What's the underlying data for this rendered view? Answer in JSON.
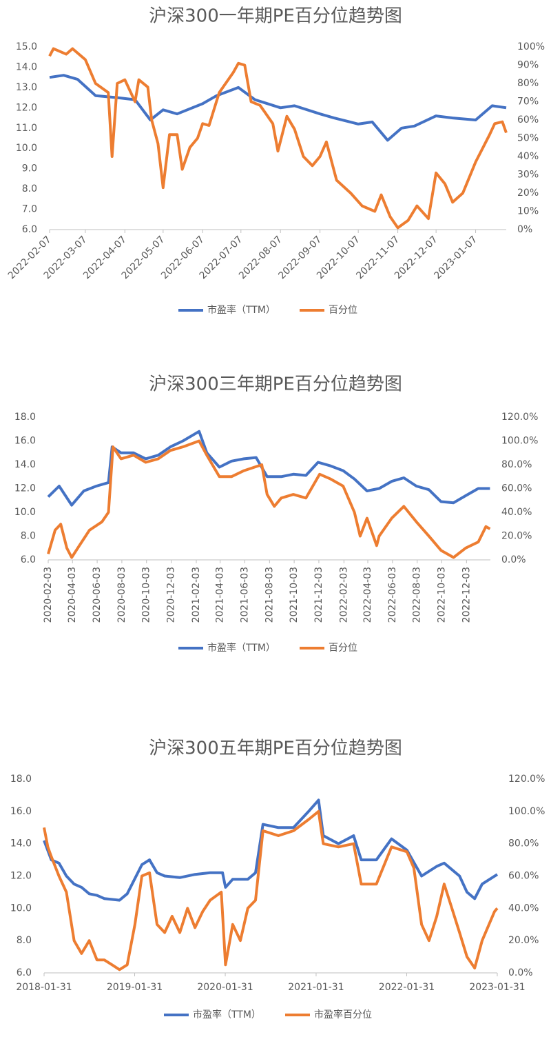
{
  "chart_data": [
    {
      "type": "line",
      "title": "沪深300一年期PE百分位趋势图",
      "legend": "bottom",
      "xlim": [
        "2022-02-07",
        "2023-01-31"
      ],
      "xticks": [
        "2022-02-07",
        "2022-03-07",
        "2022-04-07",
        "2022-05-07",
        "2022-06-07",
        "2022-07-07",
        "2022-08-07",
        "2022-09-07",
        "2022-10-07",
        "2022-11-07",
        "2022-12-07",
        "2023-01-07"
      ],
      "ylim": [
        6,
        15
      ],
      "yticks": [
        {
          "value": 6,
          "label": "6.0"
        },
        {
          "value": 7,
          "label": "7.0"
        },
        {
          "value": 8,
          "label": "8.0"
        },
        {
          "value": 9,
          "label": "9.0"
        },
        {
          "value": 10,
          "label": "10.0"
        },
        {
          "value": 11,
          "label": "11.0"
        },
        {
          "value": 12,
          "label": "12.0"
        },
        {
          "value": 13,
          "label": "13.0"
        },
        {
          "value": 14,
          "label": "14.0"
        },
        {
          "value": 15,
          "label": "15.0"
        }
      ],
      "y2lim": [
        0,
        100
      ],
      "y2ticks": [
        {
          "value": 0,
          "label": "0%"
        },
        {
          "value": 10,
          "label": "10%"
        },
        {
          "value": 20,
          "label": "20%"
        },
        {
          "value": 30,
          "label": "30%"
        },
        {
          "value": 40,
          "label": "40%"
        },
        {
          "value": 50,
          "label": "50%"
        },
        {
          "value": 60,
          "label": "60%"
        },
        {
          "value": 70,
          "label": "70%"
        },
        {
          "value": 80,
          "label": "80%"
        },
        {
          "value": 90,
          "label": "90%"
        },
        {
          "value": 100,
          "label": "100%"
        }
      ],
      "series": [
        {
          "name": "市盈率（TTM）",
          "color": "#4472c4",
          "x": [
            "2022-02-07",
            "2022-02-18",
            "2022-03-01",
            "2022-03-15",
            "2022-04-01",
            "2022-04-15",
            "2022-04-27",
            "2022-05-07",
            "2022-05-18",
            "2022-06-07",
            "2022-06-18",
            "2022-07-05",
            "2022-07-18",
            "2022-08-07",
            "2022-08-18",
            "2022-09-07",
            "2022-09-18",
            "2022-10-07",
            "2022-10-18",
            "2022-10-30",
            "2022-11-10",
            "2022-11-20",
            "2022-12-07",
            "2022-12-20",
            "2023-01-07",
            "2023-01-20",
            "2023-01-31"
          ],
          "values": [
            13.5,
            13.6,
            13.4,
            12.6,
            12.5,
            12.4,
            11.4,
            11.9,
            11.7,
            12.2,
            12.6,
            13.0,
            12.4,
            12.0,
            12.1,
            11.7,
            11.5,
            11.2,
            11.3,
            10.4,
            11.0,
            11.1,
            11.6,
            11.5,
            11.4,
            12.1,
            12.0
          ]
        },
        {
          "name": "百分位",
          "color": "#ed7d31",
          "axis": "y2",
          "x": [
            "2022-02-07",
            "2022-02-10",
            "2022-02-20",
            "2022-02-25",
            "2022-03-07",
            "2022-03-15",
            "2022-03-25",
            "2022-03-28",
            "2022-04-01",
            "2022-04-07",
            "2022-04-15",
            "2022-04-18",
            "2022-04-25",
            "2022-04-28",
            "2022-05-03",
            "2022-05-07",
            "2022-05-12",
            "2022-05-18",
            "2022-05-22",
            "2022-05-28",
            "2022-06-03",
            "2022-06-07",
            "2022-06-12",
            "2022-06-20",
            "2022-06-25",
            "2022-07-01",
            "2022-07-05",
            "2022-07-10",
            "2022-07-15",
            "2022-07-22",
            "2022-08-01",
            "2022-08-05",
            "2022-08-12",
            "2022-08-18",
            "2022-08-25",
            "2022-09-01",
            "2022-09-07",
            "2022-09-12",
            "2022-09-20",
            "2022-10-01",
            "2022-10-10",
            "2022-10-20",
            "2022-10-25",
            "2022-11-01",
            "2022-11-07",
            "2022-11-15",
            "2022-11-22",
            "2022-12-01",
            "2022-12-07",
            "2022-12-14",
            "2022-12-20",
            "2022-12-28",
            "2023-01-07",
            "2023-01-18",
            "2023-01-22",
            "2023-01-28",
            "2023-01-31"
          ],
          "values": [
            95,
            99,
            96,
            99,
            93,
            80,
            75,
            40,
            80,
            82,
            70,
            82,
            78,
            60,
            47,
            23,
            52,
            52,
            33,
            45,
            50,
            58,
            57,
            75,
            80,
            86,
            91,
            90,
            70,
            68,
            58,
            43,
            62,
            55,
            40,
            35,
            40,
            48,
            27,
            20,
            13,
            10,
            19,
            7,
            1,
            5,
            13,
            6,
            31,
            25,
            15,
            20,
            37,
            52,
            58,
            59,
            53
          ]
        }
      ]
    },
    {
      "type": "line",
      "title": "沪深300三年期PE百分位趋势图",
      "legend": "bottom",
      "xlim": [
        "2020-02-03",
        "2023-01-31"
      ],
      "xticks": [
        "2020-02-03",
        "2020-04-03",
        "2020-06-03",
        "2020-08-03",
        "2020-10-03",
        "2020-12-03",
        "2021-02-03",
        "2021-04-03",
        "2021-06-03",
        "2021-08-03",
        "2021-10-03",
        "2021-12-03",
        "2022-02-03",
        "2022-04-03",
        "2022-06-03",
        "2022-08-03",
        "2022-10-03",
        "2022-12-03"
      ],
      "ylim": [
        6,
        18
      ],
      "yticks": [
        {
          "value": 6,
          "label": "6.0"
        },
        {
          "value": 8,
          "label": "8.0"
        },
        {
          "value": 10,
          "label": "10.0"
        },
        {
          "value": 12,
          "label": "12.0"
        },
        {
          "value": 14,
          "label": "14.0"
        },
        {
          "value": 16,
          "label": "16.0"
        },
        {
          "value": 18,
          "label": "18.0"
        }
      ],
      "y2lim": [
        0,
        120
      ],
      "y2ticks": [
        {
          "value": 0,
          "label": "0.0%"
        },
        {
          "value": 20,
          "label": "20.0%"
        },
        {
          "value": 40,
          "label": "40.0%"
        },
        {
          "value": 60,
          "label": "60.0%"
        },
        {
          "value": 80,
          "label": "80.0%"
        },
        {
          "value": 100,
          "label": "100.0%"
        },
        {
          "value": 120,
          "label": "120.0%"
        }
      ],
      "series": [
        {
          "name": "市盈率（TTM）",
          "color": "#4472c4",
          "x": [
            "2020-02-03",
            "2020-03-01",
            "2020-04-01",
            "2020-05-01",
            "2020-06-01",
            "2020-07-01",
            "2020-07-10",
            "2020-08-01",
            "2020-09-01",
            "2020-10-01",
            "2020-11-01",
            "2020-12-01",
            "2021-01-01",
            "2021-02-10",
            "2021-03-01",
            "2021-04-01",
            "2021-05-01",
            "2021-06-01",
            "2021-07-01",
            "2021-07-28",
            "2021-09-01",
            "2021-10-01",
            "2021-11-01",
            "2021-12-01",
            "2022-01-01",
            "2022-02-01",
            "2022-03-01",
            "2022-04-01",
            "2022-05-01",
            "2022-06-01",
            "2022-07-01",
            "2022-08-01",
            "2022-09-01",
            "2022-10-01",
            "2022-11-01",
            "2022-12-01",
            "2023-01-01",
            "2023-01-30"
          ],
          "values": [
            11.3,
            12.2,
            10.6,
            11.8,
            12.2,
            12.5,
            15.5,
            15.0,
            15.0,
            14.5,
            14.8,
            15.5,
            16.0,
            16.8,
            15.0,
            13.8,
            14.3,
            14.5,
            14.6,
            13.0,
            13.0,
            13.2,
            13.1,
            14.2,
            13.9,
            13.5,
            12.8,
            11.8,
            12.0,
            12.6,
            12.9,
            12.2,
            11.9,
            10.9,
            10.8,
            11.4,
            12.0,
            12.0
          ]
        },
        {
          "name": "百分位",
          "color": "#ed7d31",
          "axis": "y2",
          "x": [
            "2020-02-03",
            "2020-02-20",
            "2020-03-05",
            "2020-03-20",
            "2020-04-01",
            "2020-04-20",
            "2020-05-15",
            "2020-06-15",
            "2020-07-01",
            "2020-07-12",
            "2020-08-01",
            "2020-09-01",
            "2020-10-01",
            "2020-11-01",
            "2020-12-01",
            "2021-01-01",
            "2021-02-10",
            "2021-03-01",
            "2021-04-01",
            "2021-05-01",
            "2021-06-01",
            "2021-07-15",
            "2021-07-28",
            "2021-08-15",
            "2021-09-01",
            "2021-10-01",
            "2021-11-01",
            "2021-12-05",
            "2022-01-01",
            "2022-02-01",
            "2022-03-01",
            "2022-03-15",
            "2022-04-01",
            "2022-04-25",
            "2022-05-01",
            "2022-06-01",
            "2022-07-01",
            "2022-08-01",
            "2022-09-01",
            "2022-10-01",
            "2022-11-01",
            "2022-12-01",
            "2023-01-01",
            "2023-01-20",
            "2023-01-30"
          ],
          "values": [
            5,
            25,
            30,
            10,
            2,
            12,
            25,
            32,
            40,
            95,
            85,
            88,
            82,
            85,
            92,
            95,
            100,
            88,
            70,
            70,
            75,
            80,
            55,
            45,
            52,
            55,
            52,
            72,
            68,
            62,
            40,
            20,
            35,
            12,
            20,
            35,
            45,
            32,
            20,
            8,
            2,
            10,
            15,
            28,
            26
          ]
        }
      ]
    },
    {
      "type": "line",
      "title": "沪深300五年期PE百分位趋势图",
      "legend": "bottom",
      "xlim": [
        "2018-01-31",
        "2023-01-31"
      ],
      "xticks": [
        "2018-01-31",
        "2019-01-31",
        "2020-01-31",
        "2021-01-31",
        "2022-01-31",
        "2023-01-31"
      ],
      "ylim": [
        6,
        18
      ],
      "yticks": [
        {
          "value": 6,
          "label": "6.0"
        },
        {
          "value": 8,
          "label": "8.0"
        },
        {
          "value": 10,
          "label": "10.0"
        },
        {
          "value": 12,
          "label": "12.0"
        },
        {
          "value": 14,
          "label": "14.0"
        },
        {
          "value": 16,
          "label": "16.0"
        },
        {
          "value": 18,
          "label": "18.0"
        }
      ],
      "y2lim": [
        0,
        120
      ],
      "y2ticks": [
        {
          "value": 0,
          "label": "0.0%"
        },
        {
          "value": 20,
          "label": "20.0%"
        },
        {
          "value": 40,
          "label": "40.0%"
        },
        {
          "value": 60,
          "label": "60.0%"
        },
        {
          "value": 80,
          "label": "80.0%"
        },
        {
          "value": 100,
          "label": "100.0%"
        },
        {
          "value": 120,
          "label": "120.0%"
        }
      ],
      "series": [
        {
          "name": "市盈率（TTM）",
          "color": "#4472c4",
          "x": [
            "2018-01-31",
            "2018-03-01",
            "2018-04-01",
            "2018-05-01",
            "2018-06-01",
            "2018-07-01",
            "2018-08-01",
            "2018-09-01",
            "2018-10-01",
            "2018-12-01",
            "2019-01-01",
            "2019-03-01",
            "2019-04-01",
            "2019-05-01",
            "2019-06-01",
            "2019-08-01",
            "2019-10-01",
            "2019-12-01",
            "2020-01-20",
            "2020-02-01",
            "2020-03-01",
            "2020-05-01",
            "2020-06-01",
            "2020-07-01",
            "2020-09-01",
            "2020-11-01",
            "2021-01-01",
            "2021-02-10",
            "2021-03-01",
            "2021-05-01",
            "2021-07-01",
            "2021-08-01",
            "2021-10-01",
            "2021-12-01",
            "2022-02-01",
            "2022-04-01",
            "2022-06-01",
            "2022-07-01",
            "2022-09-01",
            "2022-10-01",
            "2022-11-01",
            "2022-12-01",
            "2023-01-31"
          ],
          "values": [
            14.2,
            13.0,
            12.8,
            12.0,
            11.5,
            11.3,
            10.9,
            10.8,
            10.6,
            10.5,
            10.9,
            12.7,
            13.0,
            12.2,
            12.0,
            11.9,
            12.1,
            12.2,
            12.2,
            11.3,
            11.8,
            11.8,
            12.2,
            15.2,
            15.0,
            15.0,
            16.0,
            16.7,
            14.5,
            14.0,
            14.5,
            13.0,
            13.0,
            14.3,
            13.6,
            12.0,
            12.6,
            12.8,
            12.0,
            11.0,
            10.6,
            11.5,
            12.1
          ]
        },
        {
          "name": "市盈率百分位",
          "color": "#ed7d31",
          "axis": "y2",
          "x": [
            "2018-01-31",
            "2018-02-15",
            "2018-03-01",
            "2018-04-01",
            "2018-05-01",
            "2018-06-01",
            "2018-07-01",
            "2018-08-01",
            "2018-09-01",
            "2018-10-01",
            "2018-11-01",
            "2018-12-01",
            "2019-01-01",
            "2019-02-01",
            "2019-03-01",
            "2019-04-01",
            "2019-05-01",
            "2019-06-01",
            "2019-07-01",
            "2019-08-01",
            "2019-09-01",
            "2019-10-01",
            "2019-11-01",
            "2019-12-01",
            "2020-01-15",
            "2020-02-01",
            "2020-03-01",
            "2020-04-01",
            "2020-05-01",
            "2020-06-01",
            "2020-07-01",
            "2020-09-01",
            "2020-11-01",
            "2021-01-01",
            "2021-02-10",
            "2021-03-01",
            "2021-05-01",
            "2021-07-01",
            "2021-08-01",
            "2021-10-01",
            "2021-12-01",
            "2022-02-01",
            "2022-03-01",
            "2022-04-01",
            "2022-05-01",
            "2022-06-01",
            "2022-07-01",
            "2022-08-01",
            "2022-09-01",
            "2022-10-01",
            "2022-11-01",
            "2022-12-01",
            "2023-01-20",
            "2023-01-31"
          ],
          "values": [
            90,
            78,
            72,
            60,
            50,
            20,
            12,
            20,
            8,
            8,
            5,
            2,
            5,
            30,
            60,
            62,
            30,
            25,
            35,
            25,
            40,
            28,
            38,
            45,
            50,
            5,
            30,
            20,
            40,
            45,
            88,
            85,
            88,
            95,
            100,
            80,
            78,
            80,
            55,
            55,
            78,
            75,
            65,
            30,
            20,
            35,
            55,
            40,
            25,
            10,
            3,
            20,
            38,
            40
          ]
        }
      ]
    }
  ]
}
